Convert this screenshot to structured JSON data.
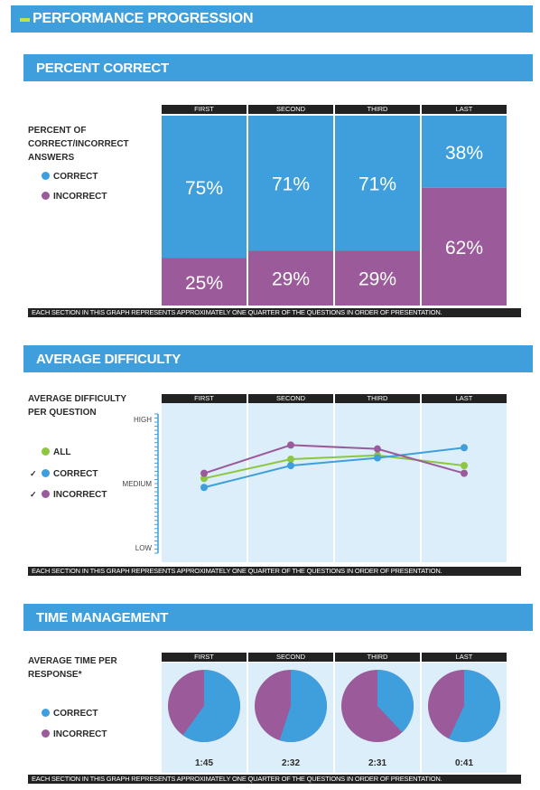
{
  "header": {
    "title": "PERFORMANCE PROGRESSION"
  },
  "colors": {
    "correct": "#3f9fdc",
    "incorrect": "#9b5a99",
    "all": "#8dc63f",
    "panel": "#dceef9"
  },
  "quarters": [
    "FIRST",
    "SECOND",
    "THIRD",
    "LAST"
  ],
  "footer_note": "EACH SECTION IN THIS GRAPH REPRESENTS APPROXIMATELY ONE QUARTER OF THE QUESTIONS IN ORDER OF PRESENTATION.",
  "percent_section": {
    "title": "PERCENT CORRECT",
    "side_label": "PERCENT OF CORRECT/INCORRECT ANSWERS",
    "legend": {
      "correct": "CORRECT",
      "incorrect": "INCORRECT"
    }
  },
  "difficulty_section": {
    "title": "AVERAGE DIFFICULTY",
    "side_label": "AVERAGE DIFFICULTY PER QUESTION",
    "legend": {
      "all": "ALL",
      "correct": "CORRECT",
      "incorrect": "INCORRECT"
    },
    "check_icon": "✓"
  },
  "time_section": {
    "title": "TIME MANAGEMENT",
    "side_label": "AVERAGE TIME PER RESPONSE*",
    "legend": {
      "correct": "CORRECT",
      "incorrect": "INCORRECT"
    }
  },
  "chart_data": [
    {
      "type": "bar",
      "stacked": true,
      "categories": [
        "FIRST",
        "SECOND",
        "THIRD",
        "LAST"
      ],
      "series": [
        {
          "name": "CORRECT",
          "values": [
            75,
            71,
            71,
            38
          ]
        },
        {
          "name": "INCORRECT",
          "values": [
            25,
            29,
            29,
            62
          ]
        }
      ],
      "data_labels": [
        [
          "75%",
          "71%",
          "71%",
          "38%"
        ],
        [
          "25%",
          "29%",
          "29%",
          "62%"
        ]
      ],
      "ylim": [
        0,
        100
      ]
    },
    {
      "type": "line",
      "categories": [
        "FIRST",
        "SECOND",
        "THIRD",
        "LAST"
      ],
      "y_ticks": [
        "HIGH",
        "MEDIUM",
        "LOW"
      ],
      "ylim": [
        0,
        1
      ],
      "series": [
        {
          "name": "ALL",
          "values": [
            0.54,
            0.69,
            0.72,
            0.64
          ]
        },
        {
          "name": "CORRECT",
          "values": [
            0.47,
            0.64,
            0.7,
            0.78
          ]
        },
        {
          "name": "INCORRECT",
          "values": [
            0.58,
            0.8,
            0.77,
            0.58
          ]
        }
      ]
    },
    {
      "type": "pie",
      "categories": [
        "FIRST",
        "SECOND",
        "THIRD",
        "LAST"
      ],
      "series": [
        {
          "name": "CORRECT",
          "values": [
            60,
            55,
            38,
            57
          ]
        },
        {
          "name": "INCORRECT",
          "values": [
            40,
            45,
            62,
            43
          ]
        }
      ],
      "time_labels": [
        "1:45",
        "2:32",
        "2:31",
        "0:41"
      ]
    }
  ]
}
